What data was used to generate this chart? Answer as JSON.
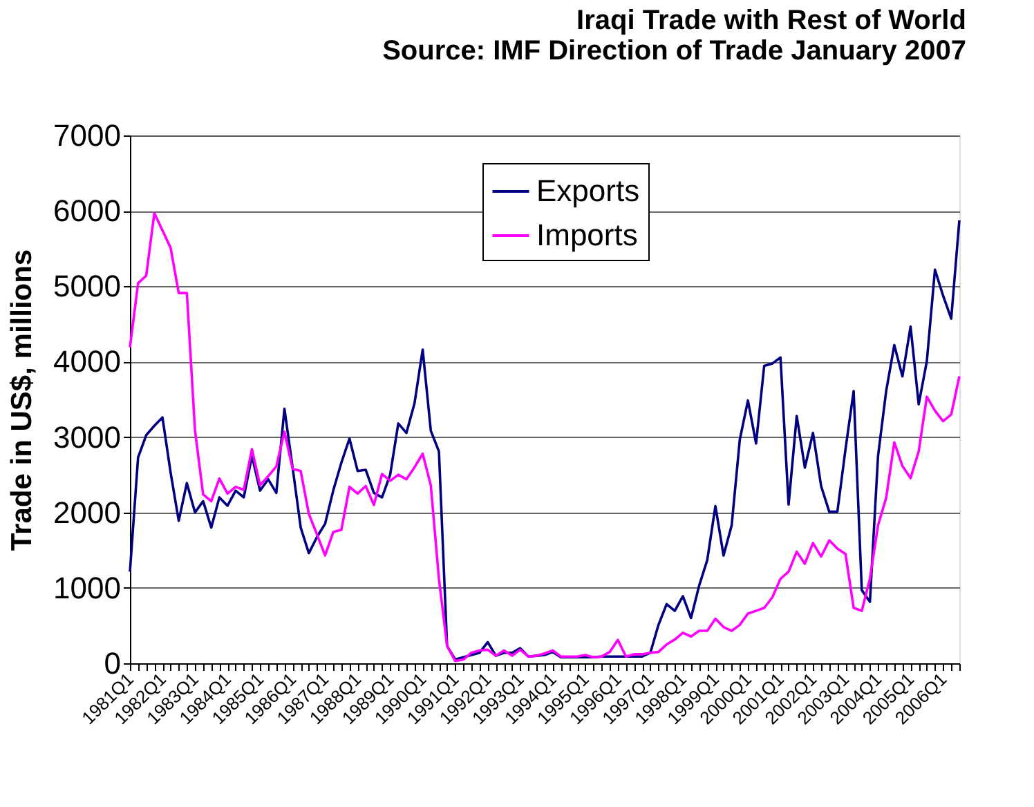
{
  "chart_data": {
    "type": "line",
    "title": [
      "Iraqi Trade with Rest of World",
      "Source: IMF Direction of Trade January 2007"
    ],
    "ylabel": "Trade in US$, millions",
    "categories": [
      "1981Q1",
      null,
      null,
      null,
      "1982Q1",
      null,
      null,
      null,
      "1983Q1",
      null,
      null,
      null,
      "1984Q1",
      null,
      null,
      null,
      "1985Q1",
      null,
      null,
      null,
      "1986Q1",
      null,
      null,
      null,
      "1987Q1",
      null,
      null,
      null,
      "1988Q1",
      null,
      null,
      null,
      "1989Q1",
      null,
      null,
      null,
      "1990Q1",
      null,
      null,
      null,
      "1991Q1",
      null,
      null,
      null,
      "1992Q1",
      null,
      null,
      null,
      "1993Q1",
      null,
      null,
      null,
      "1994Q1",
      null,
      null,
      null,
      "1995Q1",
      null,
      null,
      null,
      "1996Q1",
      null,
      null,
      null,
      "1997Q1",
      null,
      null,
      null,
      "1998Q1",
      null,
      null,
      null,
      "1999Q1",
      null,
      null,
      null,
      "2000Q1",
      null,
      null,
      null,
      "2001Q1",
      null,
      null,
      null,
      "2002Q1",
      null,
      null,
      null,
      "2003Q1",
      null,
      null,
      null,
      "2004Q1",
      null,
      null,
      null,
      "2005Q1",
      null,
      null,
      null,
      "2006Q1",
      null,
      null
    ],
    "series": [
      {
        "name": "Exports",
        "color": "#000080",
        "values": [
          1215,
          2730,
          3025,
          3150,
          3260,
          2530,
          1890,
          2390,
          2000,
          2150,
          1800,
          2200,
          2090,
          2290,
          2200,
          2750,
          2290,
          2440,
          2260,
          3375,
          2600,
          1800,
          1460,
          1675,
          1850,
          2290,
          2660,
          2980,
          2550,
          2565,
          2260,
          2200,
          2500,
          3180,
          3055,
          3450,
          4160,
          3085,
          2810,
          230,
          50,
          80,
          110,
          140,
          280,
          100,
          140,
          140,
          200,
          90,
          100,
          110,
          150,
          80,
          80,
          80,
          80,
          80,
          90,
          90,
          90,
          90,
          90,
          90,
          140,
          510,
          785,
          695,
          890,
          600,
          1030,
          1370,
          2085,
          1430,
          1830,
          2965,
          3485,
          2915,
          3945,
          3975,
          4055,
          2105,
          3280,
          2595,
          3055,
          2350,
          2010,
          2010,
          2840,
          3610,
          970,
          815,
          2750,
          3610,
          4220,
          3805,
          4465,
          3435,
          4005,
          5220,
          4875,
          4570,
          5875
        ]
      },
      {
        "name": "Imports",
        "color": "#ff00ff",
        "values": [
          4190,
          5040,
          5140,
          5970,
          5740,
          5510,
          4910,
          4910,
          3090,
          2240,
          2150,
          2450,
          2250,
          2340,
          2300,
          2840,
          2360,
          2480,
          2610,
          3070,
          2580,
          2550,
          1980,
          1710,
          1430,
          1740,
          1770,
          2340,
          2250,
          2350,
          2100,
          2510,
          2420,
          2500,
          2440,
          2600,
          2780,
          2360,
          1120,
          230,
          30,
          50,
          140,
          170,
          180,
          100,
          170,
          100,
          180,
          90,
          100,
          130,
          170,
          90,
          90,
          90,
          110,
          80,
          90,
          150,
          310,
          90,
          120,
          120,
          140,
          150,
          250,
          315,
          405,
          355,
          430,
          430,
          590,
          480,
          430,
          510,
          660,
          695,
          735,
          875,
          1120,
          1215,
          1480,
          1320,
          1595,
          1415,
          1630,
          1520,
          1450,
          735,
          695,
          1120,
          1830,
          2195,
          2930,
          2615,
          2455,
          2810,
          3535,
          3350,
          3210,
          3300,
          3805
        ]
      }
    ],
    "ylim": [
      0,
      7000
    ],
    "yticks": [
      0,
      1000,
      2000,
      3000,
      4000,
      5000,
      6000,
      7000
    ],
    "grid": "y",
    "legend": "top",
    "line_style": "solid",
    "marker": "none"
  }
}
